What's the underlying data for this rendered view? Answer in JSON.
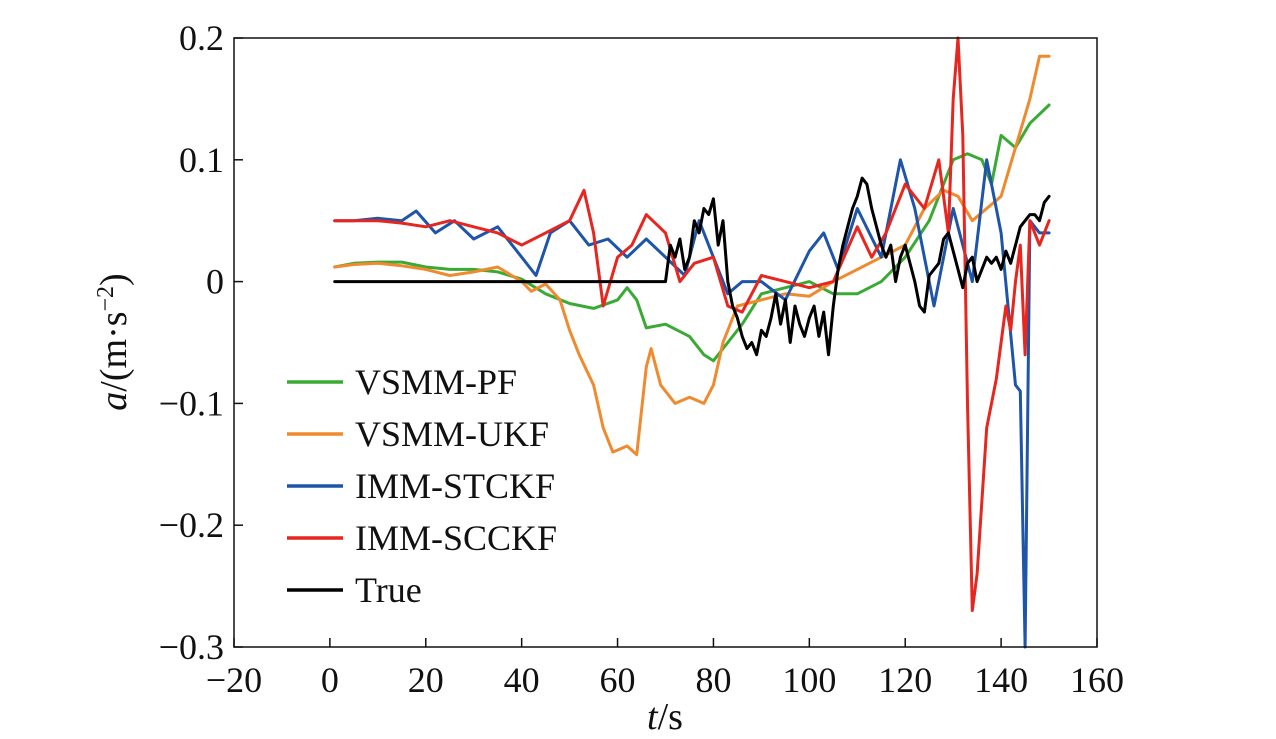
{
  "chart_data": {
    "type": "line",
    "xlabel_italic": "t",
    "xlabel_rest": "/s",
    "ylabel_italic": "a",
    "ylabel_rest": "/(m·s",
    "ylabel_exp": "−2",
    "ylabel_close": ")",
    "xlim": [
      -20,
      160
    ],
    "ylim": [
      -0.3,
      0.2
    ],
    "xticks": [
      -20,
      0,
      20,
      40,
      60,
      80,
      100,
      120,
      140,
      160
    ],
    "xtick_labels": [
      "−20",
      "0",
      "20",
      "40",
      "60",
      "80",
      "100",
      "120",
      "140",
      "160"
    ],
    "yticks": [
      -0.3,
      -0.2,
      -0.1,
      0,
      0.1,
      0.2
    ],
    "ytick_labels": [
      "−0.3",
      "−0.2",
      "−0.1",
      "0",
      "0.1",
      "0.2"
    ],
    "grid": false,
    "legend_position": "lower-left",
    "series": [
      {
        "name": "VSMM-PF",
        "color": "#3aaa35",
        "x": [
          1,
          5,
          10,
          15,
          20,
          25,
          30,
          35,
          40,
          45,
          50,
          55,
          60,
          62,
          64,
          66,
          70,
          75,
          78,
          80,
          83,
          86,
          90,
          95,
          100,
          105,
          110,
          115,
          120,
          125,
          128,
          130,
          133,
          136,
          138,
          140,
          143,
          146,
          150
        ],
        "y": [
          0.012,
          0.015,
          0.016,
          0.016,
          0.012,
          0.01,
          0.01,
          0.008,
          0.002,
          -0.01,
          -0.018,
          -0.022,
          -0.015,
          -0.005,
          -0.015,
          -0.038,
          -0.035,
          -0.045,
          -0.06,
          -0.065,
          -0.05,
          -0.035,
          -0.01,
          -0.005,
          0.0,
          -0.01,
          -0.01,
          0.0,
          0.02,
          0.05,
          0.08,
          0.1,
          0.105,
          0.1,
          0.08,
          0.12,
          0.11,
          0.13,
          0.145
        ]
      },
      {
        "name": "VSMM-UKF",
        "color": "#f08a2e",
        "x": [
          1,
          5,
          10,
          15,
          20,
          25,
          30,
          35,
          40,
          42,
          45,
          48,
          50,
          52,
          55,
          57,
          59,
          62,
          64,
          66,
          67,
          69,
          72,
          75,
          78,
          80,
          82,
          85,
          90,
          95,
          100,
          105,
          110,
          115,
          120,
          124,
          128,
          131,
          134,
          137,
          140,
          143,
          146,
          148,
          150
        ],
        "y": [
          0.012,
          0.014,
          0.015,
          0.013,
          0.01,
          0.005,
          0.008,
          0.012,
          0.0,
          -0.008,
          -0.002,
          -0.015,
          -0.04,
          -0.06,
          -0.085,
          -0.12,
          -0.14,
          -0.135,
          -0.142,
          -0.07,
          -0.055,
          -0.085,
          -0.1,
          -0.095,
          -0.1,
          -0.085,
          -0.05,
          -0.02,
          -0.015,
          -0.01,
          -0.012,
          0.0,
          0.01,
          0.02,
          0.03,
          0.06,
          0.075,
          0.07,
          0.05,
          0.06,
          0.07,
          0.11,
          0.15,
          0.185,
          0.185
        ]
      },
      {
        "name": "IMM-STCKF",
        "color": "#1f55a8",
        "x": [
          1,
          5,
          10,
          15,
          18,
          22,
          26,
          30,
          35,
          40,
          43,
          46,
          50,
          54,
          58,
          62,
          66,
          70,
          74,
          77,
          80,
          83,
          86,
          90,
          95,
          100,
          103,
          106,
          110,
          115,
          119,
          122,
          126,
          130,
          134,
          137,
          140,
          143,
          144,
          145,
          146,
          148,
          150
        ],
        "y": [
          0.05,
          0.05,
          0.052,
          0.05,
          0.058,
          0.04,
          0.05,
          0.035,
          0.045,
          0.02,
          0.005,
          0.04,
          0.05,
          0.03,
          0.035,
          0.02,
          0.035,
          0.02,
          0.005,
          0.05,
          0.02,
          -0.01,
          0.0,
          0.0,
          -0.015,
          0.025,
          0.04,
          0.01,
          0.06,
          0.02,
          0.1,
          0.06,
          -0.02,
          0.06,
          0.0,
          0.1,
          0.04,
          -0.085,
          -0.09,
          -0.3,
          0.05,
          0.04,
          0.04
        ]
      },
      {
        "name": "IMM-SCCKF",
        "color": "#e6261f",
        "x": [
          1,
          5,
          10,
          15,
          20,
          25,
          30,
          35,
          40,
          45,
          50,
          53,
          55,
          57,
          60,
          63,
          66,
          70,
          73,
          76,
          80,
          83,
          86,
          90,
          95,
          100,
          105,
          110,
          113,
          116,
          120,
          124,
          127,
          129,
          130,
          131,
          132,
          133,
          134,
          135,
          137,
          139,
          141,
          142,
          143,
          144,
          145,
          146,
          148,
          150
        ],
        "y": [
          0.05,
          0.05,
          0.05,
          0.048,
          0.045,
          0.05,
          0.045,
          0.04,
          0.03,
          0.04,
          0.05,
          0.075,
          0.04,
          -0.02,
          0.02,
          0.03,
          0.055,
          0.04,
          0.0,
          0.015,
          0.02,
          -0.02,
          -0.025,
          0.005,
          0.0,
          -0.005,
          0.0,
          0.045,
          0.02,
          0.04,
          0.08,
          0.06,
          0.1,
          0.04,
          0.15,
          0.2,
          0.12,
          -0.1,
          -0.27,
          -0.24,
          -0.12,
          -0.08,
          -0.02,
          -0.04,
          0.0,
          0.03,
          -0.06,
          0.05,
          0.03,
          0.05
        ]
      },
      {
        "name": "True",
        "color": "#000000",
        "x": [
          1,
          10,
          20,
          30,
          40,
          50,
          60,
          70,
          71,
          72,
          73,
          74,
          75,
          76,
          77,
          78,
          79,
          80,
          81,
          82,
          83,
          84,
          85,
          86,
          87,
          88,
          89,
          90,
          91,
          92,
          93,
          94,
          95,
          96,
          97,
          98,
          99,
          100,
          101,
          102,
          103,
          104,
          105,
          106,
          107,
          108,
          109,
          110,
          111,
          112,
          113,
          114,
          115,
          116,
          117,
          118,
          119,
          120,
          121,
          122,
          123,
          124,
          125,
          126,
          127,
          128,
          129,
          130,
          131,
          132,
          133,
          134,
          135,
          136,
          137,
          138,
          139,
          140,
          141,
          142,
          143,
          144,
          145,
          146,
          147,
          148,
          149,
          150
        ],
        "y": [
          0.0,
          0.0,
          0.0,
          0.0,
          0.0,
          0.0,
          0.0,
          0.0,
          0.03,
          0.02,
          0.035,
          0.01,
          0.02,
          0.05,
          0.04,
          0.06,
          0.055,
          0.068,
          0.03,
          0.05,
          0.0,
          -0.02,
          -0.03,
          -0.045,
          -0.055,
          -0.05,
          -0.06,
          -0.04,
          -0.045,
          -0.03,
          -0.01,
          -0.035,
          -0.015,
          -0.05,
          -0.02,
          -0.035,
          -0.045,
          -0.03,
          -0.02,
          -0.045,
          -0.025,
          -0.06,
          -0.02,
          0.01,
          0.03,
          0.045,
          0.06,
          0.07,
          0.085,
          0.08,
          0.06,
          0.045,
          0.03,
          0.02,
          0.03,
          0.0,
          0.02,
          0.03,
          0.015,
          0.0,
          -0.02,
          -0.025,
          0.005,
          0.01,
          0.015,
          0.035,
          0.04,
          0.025,
          0.01,
          -0.005,
          0.015,
          0.02,
          0.0,
          0.01,
          0.02,
          0.015,
          0.02,
          0.01,
          0.025,
          0.015,
          0.03,
          0.045,
          0.05,
          0.055,
          0.055,
          0.05,
          0.065,
          0.07
        ]
      }
    ]
  }
}
